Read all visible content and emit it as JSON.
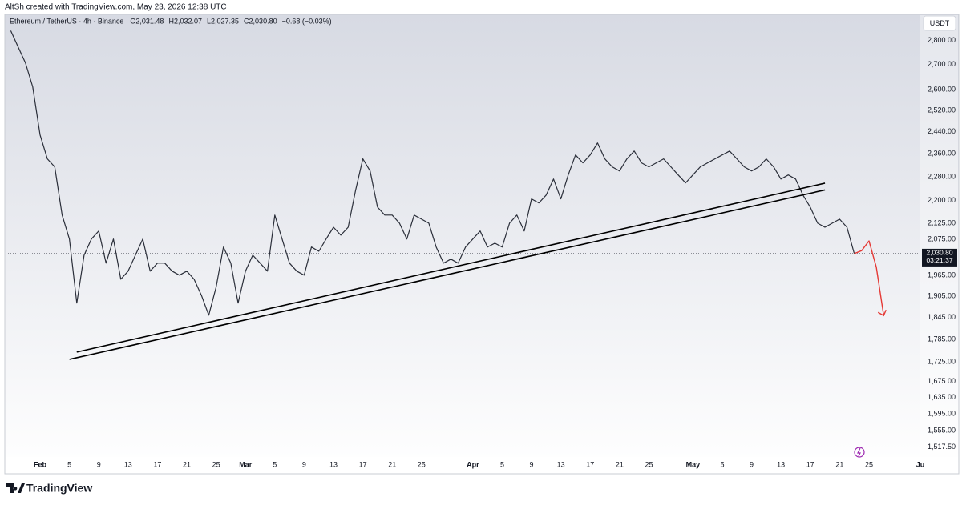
{
  "header_text": "AltSh created with TradingView.com, May 23, 2026 12:38 UTC",
  "footer_brand": "TradingView",
  "chart_data": {
    "type": "line",
    "symbol": "Ethereum / TetherUS · 4h · Binance",
    "ohlc": [
      "O2,031.48",
      "H2,032.07",
      "L2,027.35",
      "C2,030.80"
    ],
    "change": "−0.68 (−0.03%)",
    "currency": "USDT",
    "log": true,
    "grid": false,
    "ylim": [
      1495,
      2870
    ],
    "yticks": [
      {
        "value": 2800,
        "label": "2,800.00"
      },
      {
        "value": 2700,
        "label": "2,700.00"
      },
      {
        "value": 2600,
        "label": "2,600.00"
      },
      {
        "value": 2520,
        "label": "2,520.00"
      },
      {
        "value": 2440,
        "label": "2,440.00"
      },
      {
        "value": 2360,
        "label": "2,360.00"
      },
      {
        "value": 2280,
        "label": "2,280.00"
      },
      {
        "value": 2200,
        "label": "2,200.00"
      },
      {
        "value": 2125,
        "label": "2,125.00"
      },
      {
        "value": 2075,
        "label": "2,075.00"
      },
      {
        "value": 1965,
        "label": "1,965.00"
      },
      {
        "value": 1905,
        "label": "1,905.00"
      },
      {
        "value": 1845,
        "label": "1,845.00"
      },
      {
        "value": 1785,
        "label": "1,785.00"
      },
      {
        "value": 1725,
        "label": "1,725.00"
      },
      {
        "value": 1675,
        "label": "1,675.00"
      },
      {
        "value": 1635,
        "label": "1,635.00"
      },
      {
        "value": 1595,
        "label": "1,595.00"
      },
      {
        "value": 1555,
        "label": "1,555.00"
      },
      {
        "value": 1517.5,
        "label": "1,517.50"
      }
    ],
    "last_price": {
      "value": 2030.8,
      "label": "2,030.80"
    },
    "countdown": "03:21:37",
    "xlim": [
      "Jan 28",
      "Jun 1"
    ],
    "xticks": [
      {
        "value": "Feb 1",
        "label": "Feb"
      },
      {
        "value": "Feb 5",
        "label": "5"
      },
      {
        "value": "Feb 9",
        "label": "9"
      },
      {
        "value": "Feb 13",
        "label": "13"
      },
      {
        "value": "Feb 17",
        "label": "17"
      },
      {
        "value": "Feb 21",
        "label": "21"
      },
      {
        "value": "Feb 25",
        "label": "25"
      },
      {
        "value": "Mar 1",
        "label": "Mar"
      },
      {
        "value": "Mar 5",
        "label": "5"
      },
      {
        "value": "Mar 9",
        "label": "9"
      },
      {
        "value": "Mar 13",
        "label": "13"
      },
      {
        "value": "Mar 17",
        "label": "17"
      },
      {
        "value": "Mar 21",
        "label": "21"
      },
      {
        "value": "Mar 25",
        "label": "25"
      },
      {
        "value": "Apr 1",
        "label": "Apr"
      },
      {
        "value": "Apr 5",
        "label": "5"
      },
      {
        "value": "Apr 9",
        "label": "9"
      },
      {
        "value": "Apr 13",
        "label": "13"
      },
      {
        "value": "Apr 17",
        "label": "17"
      },
      {
        "value": "Apr 21",
        "label": "21"
      },
      {
        "value": "Apr 25",
        "label": "25"
      },
      {
        "value": "May 1",
        "label": "May"
      },
      {
        "value": "May 5",
        "label": "5"
      },
      {
        "value": "May 9",
        "label": "9"
      },
      {
        "value": "May 13",
        "label": "13"
      },
      {
        "value": "May 17",
        "label": "17"
      },
      {
        "value": "May 21",
        "label": "21"
      },
      {
        "value": "May 25",
        "label": "25"
      },
      {
        "value": "Jun 1",
        "label": "Ju"
      }
    ],
    "x": [
      "Jan 28",
      "Jan 29",
      "Jan 30",
      "Jan 31",
      "Feb 1",
      "Feb 2",
      "Feb 3",
      "Feb 4",
      "Feb 5",
      "Feb 6",
      "Feb 7",
      "Feb 8",
      "Feb 9",
      "Feb 10",
      "Feb 11",
      "Feb 12",
      "Feb 13",
      "Feb 14",
      "Feb 15",
      "Feb 16",
      "Feb 17",
      "Feb 18",
      "Feb 19",
      "Feb 20",
      "Feb 21",
      "Feb 22",
      "Feb 23",
      "Feb 24",
      "Feb 25",
      "Feb 26",
      "Feb 27",
      "Feb 28",
      "Mar 1",
      "Mar 2",
      "Mar 3",
      "Mar 4",
      "Mar 5",
      "Mar 6",
      "Mar 7",
      "Mar 8",
      "Mar 9",
      "Mar 10",
      "Mar 11",
      "Mar 12",
      "Mar 13",
      "Mar 14",
      "Mar 15",
      "Mar 16",
      "Mar 17",
      "Mar 18",
      "Mar 19",
      "Mar 20",
      "Mar 21",
      "Mar 22",
      "Mar 23",
      "Mar 24",
      "Mar 25",
      "Mar 26",
      "Mar 27",
      "Mar 28",
      "Mar 29",
      "Mar 30",
      "Mar 31",
      "Apr 1",
      "Apr 2",
      "Apr 3",
      "Apr 4",
      "Apr 5",
      "Apr 6",
      "Apr 7",
      "Apr 8",
      "Apr 9",
      "Apr 10",
      "Apr 11",
      "Apr 12",
      "Apr 13",
      "Apr 14",
      "Apr 15",
      "Apr 16",
      "Apr 17",
      "Apr 18",
      "Apr 19",
      "Apr 20",
      "Apr 21",
      "Apr 22",
      "Apr 23",
      "Apr 24",
      "Apr 25",
      "Apr 26",
      "Apr 27",
      "Apr 28",
      "Apr 29",
      "Apr 30",
      "May 1",
      "May 2",
      "May 3",
      "May 4",
      "May 5",
      "May 6",
      "May 7",
      "May 8",
      "May 9",
      "May 10",
      "May 11",
      "May 12",
      "May 13",
      "May 14",
      "May 15",
      "May 16",
      "May 17",
      "May 18",
      "May 19",
      "May 20",
      "May 21",
      "May 22",
      "May 23"
    ],
    "series": [
      {
        "color": "#2a2e39",
        "values": [
          2841,
          2773,
          2707,
          2611,
          2428,
          2342,
          2314,
          2152,
          2076,
          1885,
          2026,
          2076,
          2101,
          2002,
          2076,
          1954,
          1978,
          2026,
          2076,
          1978,
          2002,
          2002,
          1978,
          1966,
          1978,
          1954,
          1907,
          1851,
          1931,
          2051,
          2002,
          1885,
          1978,
          2026,
          2002,
          1978,
          2152,
          2076,
          2002,
          1978,
          1966,
          2051,
          2038,
          2076,
          2113,
          2088,
          2113,
          2232,
          2342,
          2300,
          2178,
          2152,
          2152,
          2126,
          2076,
          2152,
          2139,
          2126,
          2051,
          2002,
          2014,
          2002,
          2051,
          2076,
          2101,
          2051,
          2063,
          2051,
          2126,
          2152,
          2101,
          2205,
          2192,
          2218,
          2272,
          2205,
          2286,
          2356,
          2328,
          2356,
          2399,
          2342,
          2314,
          2300,
          2342,
          2370,
          2328,
          2314,
          2328,
          2342,
          2314,
          2286,
          2259,
          2286,
          2314,
          2328,
          2342,
          2356,
          2370,
          2342,
          2314,
          2300,
          2314,
          2342,
          2314,
          2272,
          2286,
          2272,
          2218,
          2178,
          2126,
          2113,
          2126,
          2139,
          2113,
          2030.8
        ]
      }
    ],
    "trendlines": [
      {
        "color": "#000000",
        "x": [
          "Feb 6",
          "May 19"
        ],
        "values": [
          1751,
          2258
        ]
      },
      {
        "color": "#000000",
        "x": [
          "Feb 5",
          "May 19"
        ],
        "values": [
          1732,
          2235
        ]
      }
    ],
    "forecast": {
      "color": "#e53935",
      "x": [
        "May 23",
        "May 24",
        "May 25",
        "May 26",
        "May 27"
      ],
      "values": [
        2030.8,
        2040,
        2070,
        1990,
        1850
      ]
    }
  }
}
